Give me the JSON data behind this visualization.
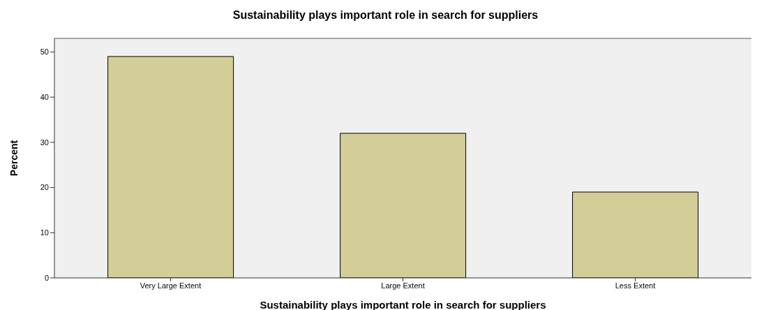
{
  "chart_data": {
    "type": "bar",
    "title": "Sustainability plays important role in search for suppliers",
    "xlabel": "Sustainability plays important role in search for suppliers",
    "ylabel": "Percent",
    "categories": [
      "Very Large Extent",
      "Large Extent",
      "Less Extent"
    ],
    "values": [
      49,
      32,
      19
    ],
    "color": "#d3cd97",
    "ylim": [
      0,
      53
    ],
    "yticks": [
      0,
      10,
      20,
      30,
      40,
      50
    ],
    "grid": false
  }
}
